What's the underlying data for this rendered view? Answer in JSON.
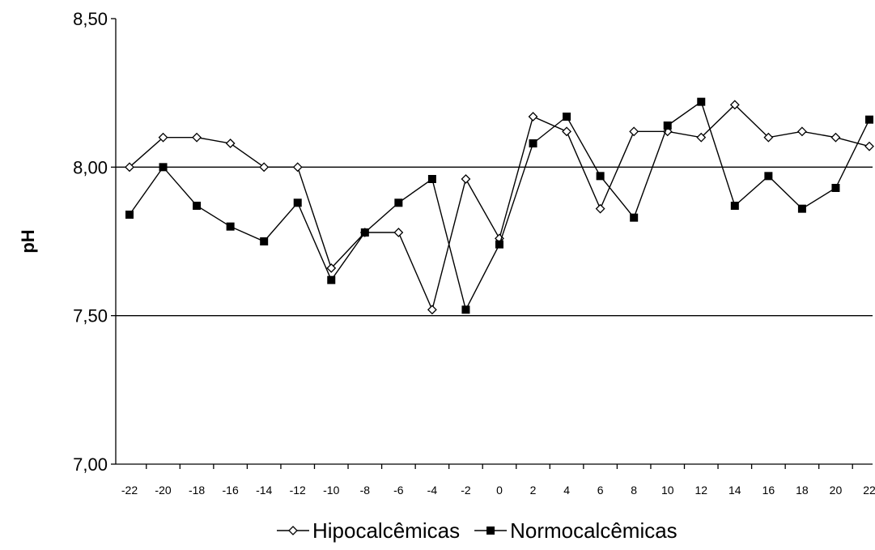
{
  "chart_data": {
    "type": "line",
    "title": "",
    "xlabel": "",
    "ylabel": "pH",
    "ylim": [
      7.0,
      8.5
    ],
    "y_ticks": [
      "7,00",
      "7,50",
      "8,00",
      "8,50"
    ],
    "y_tick_values": [
      7.0,
      7.5,
      8.0,
      8.5
    ],
    "gridlines": [
      7.5,
      8.0
    ],
    "x": [
      -22,
      -20,
      -18,
      -16,
      -14,
      -12,
      -10,
      -8,
      -6,
      -4,
      -2,
      0,
      2,
      4,
      6,
      8,
      10,
      12,
      14,
      16,
      18,
      20,
      22
    ],
    "x_tick_labels": [
      "-22",
      "-20",
      "-18",
      "-16",
      "-14",
      "-12",
      "-10",
      "-8",
      "-6",
      "-4",
      "-2",
      "0",
      "2",
      "4",
      "6",
      "8",
      "10",
      "12",
      "14",
      "16",
      "18",
      "20",
      "22"
    ],
    "legend_position": "bottom",
    "series": [
      {
        "name": "Hipocalcêmicas",
        "marker": "open-diamond",
        "color": "#000000",
        "values": [
          8.0,
          8.1,
          8.1,
          8.08,
          8.0,
          8.0,
          7.66,
          7.78,
          7.78,
          7.52,
          7.96,
          7.76,
          8.17,
          8.12,
          7.86,
          8.12,
          8.12,
          8.1,
          8.21,
          8.1,
          8.12,
          8.1,
          8.07
        ]
      },
      {
        "name": "Normocalcêmicas",
        "marker": "filled-square",
        "color": "#000000",
        "values": [
          7.84,
          8.0,
          7.87,
          7.8,
          7.75,
          7.88,
          7.62,
          7.78,
          7.88,
          7.96,
          7.52,
          7.74,
          8.08,
          8.17,
          7.97,
          7.83,
          8.14,
          8.22,
          7.87,
          7.97,
          7.86,
          7.93,
          8.16
        ]
      }
    ]
  }
}
